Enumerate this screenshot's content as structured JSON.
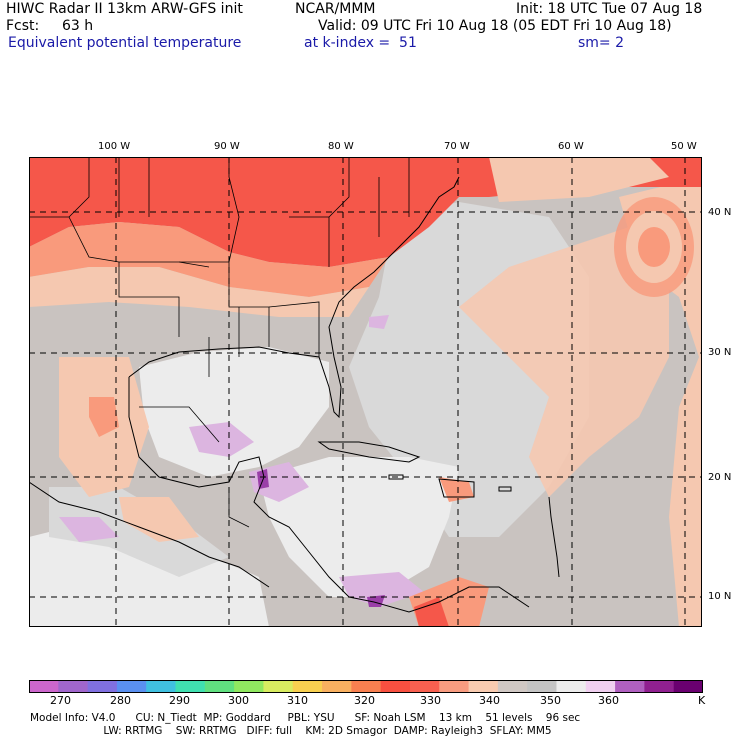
{
  "header": {
    "title": "HIWC Radar II 13km ARW-GFS init",
    "org": "NCAR/MMM",
    "init": "Init: 18 UTC Tue 07 Aug 18",
    "fcst_label": "Fcst:",
    "fcst_value": "63 h",
    "valid": "Valid: 09 UTC Fri 10 Aug 18 (05 EDT Fri 10 Aug 18)",
    "field": "Equivalent potential temperature",
    "level": "at k-index =  51",
    "smoothing": "sm= 2"
  },
  "map": {
    "lon_labels": [
      "100 W",
      "90 W",
      "80 W",
      "70 W",
      "60 W",
      "50 W"
    ],
    "lat_labels": [
      "40 N",
      "30 N",
      "20 N",
      "10 N"
    ],
    "grid_style": "dashed",
    "colors": {
      "hot": "#f5574a",
      "warm": "#f99a7c",
      "mild": "#f5c8b0",
      "neutral": "#c9c3c0",
      "cool": "#d9d9d9",
      "pale": "#ececec",
      "lilac": "#dcb5e0",
      "purple": "#9a3fa8",
      "coast": "#000000"
    }
  },
  "colorbar": {
    "colors": [
      "#cc66cc",
      "#a066cc",
      "#8070e0",
      "#5a90f0",
      "#40c0e0",
      "#40e0b0",
      "#60e080",
      "#90e860",
      "#d8ec60",
      "#f8d050",
      "#f8b060",
      "#f88050",
      "#f85040",
      "#f86050",
      "#f89c80",
      "#f8cbb0",
      "#d0c8c4",
      "#c4c4c4",
      "#ececec",
      "#f0d0f0",
      "#b060c0",
      "#902090",
      "#6a0070"
    ],
    "labels": [
      "270",
      "280",
      "290",
      "300",
      "310",
      "320",
      "330",
      "340",
      "350",
      "360"
    ],
    "unit": "K"
  },
  "model_info": {
    "line1": "Model Info: V4.0      CU: N_Tiedt  MP: Goddard     PBL: YSU      SF: Noah LSM    13 km    51 levels    96 sec",
    "line2": "                      LW: RRTMG    SW: RRTMG   DIFF: full    KM: 2D Smagor  DAMP: Rayleigh3  SFLAY: MM5"
  }
}
